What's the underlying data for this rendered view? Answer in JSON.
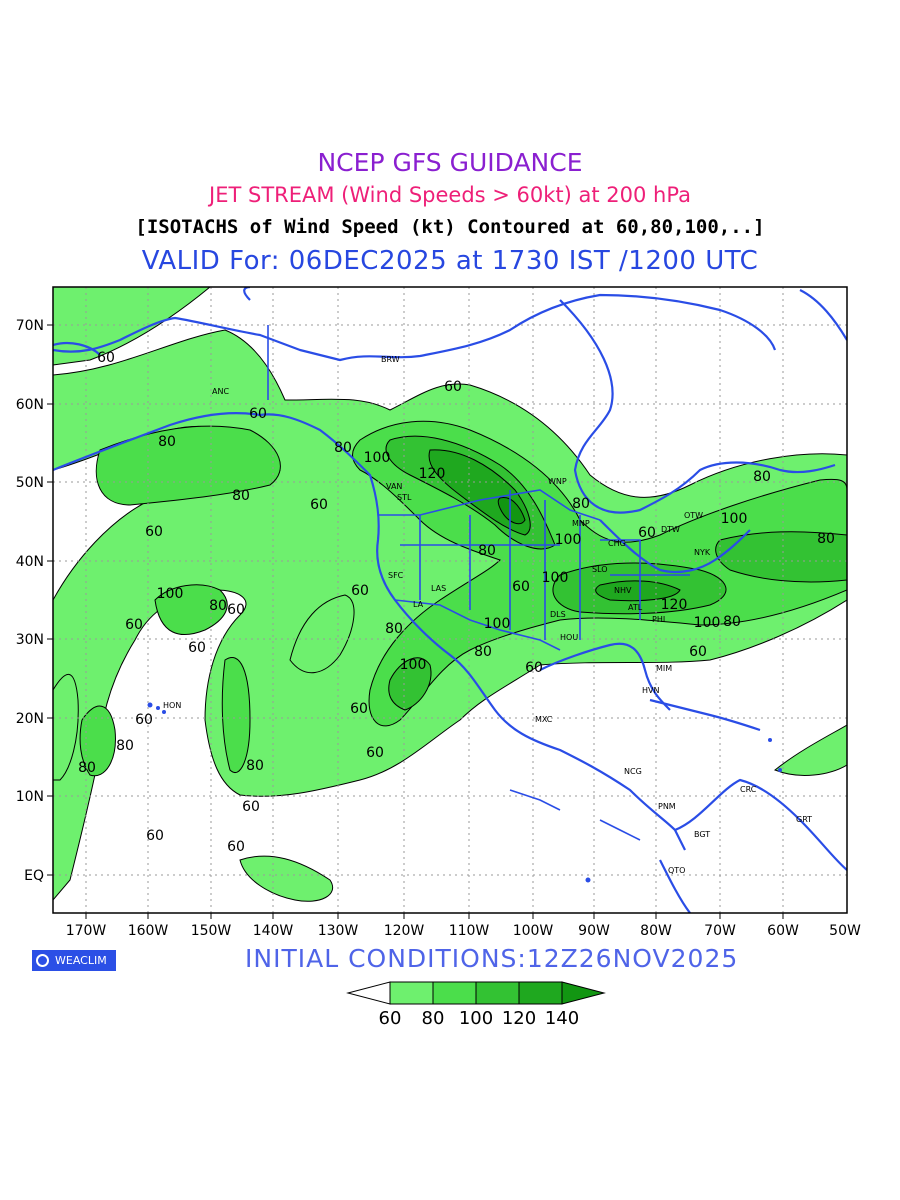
{
  "titles": {
    "line1": "NCEP GFS GUIDANCE",
    "line2": "JET STREAM (Wind Speeds > 60kt) at 200 hPa",
    "line3": "[ISOTACHS of Wind Speed (kt) Contoured at 60,80,100,..]",
    "line4": "VALID For: 06DEC2025 at 1730 IST /1200 UTC"
  },
  "initial_conditions": "INITIAL  CONDITIONS:12Z26NOV2025",
  "logo_text": "WEACLIM",
  "axes": {
    "lon_labels": [
      "170W",
      "160W",
      "150W",
      "140W",
      "130W",
      "120W",
      "110W",
      "100W",
      "90W",
      "80W",
      "70W",
      "60W",
      "50W"
    ],
    "lat_labels": [
      "70N",
      "60N",
      "50N",
      "40N",
      "30N",
      "20N",
      "10N",
      "EQ"
    ]
  },
  "colorbar": {
    "labels": [
      "60",
      "80",
      "100",
      "120",
      "140"
    ],
    "colors": [
      "#ffffff",
      "#6ef06e",
      "#4bde4b",
      "#33c233",
      "#1fa81f",
      "#129612"
    ]
  },
  "contour_labels": [
    "60",
    "80",
    "100",
    "120"
  ],
  "stations": [
    "BRW",
    "ANC",
    "VAN",
    "STL",
    "WNP",
    "MNP",
    "CHG",
    "DTW",
    "OTW",
    "NYK",
    "SLO",
    "NHV",
    "ATL",
    "DLS",
    "HOU",
    "PHI",
    "LAS",
    "SFC",
    "LA",
    "MXC",
    "HVN",
    "MIM",
    "NCG",
    "PNM",
    "BGT",
    "CRC",
    "GRT",
    "QTO",
    "HON"
  ]
}
